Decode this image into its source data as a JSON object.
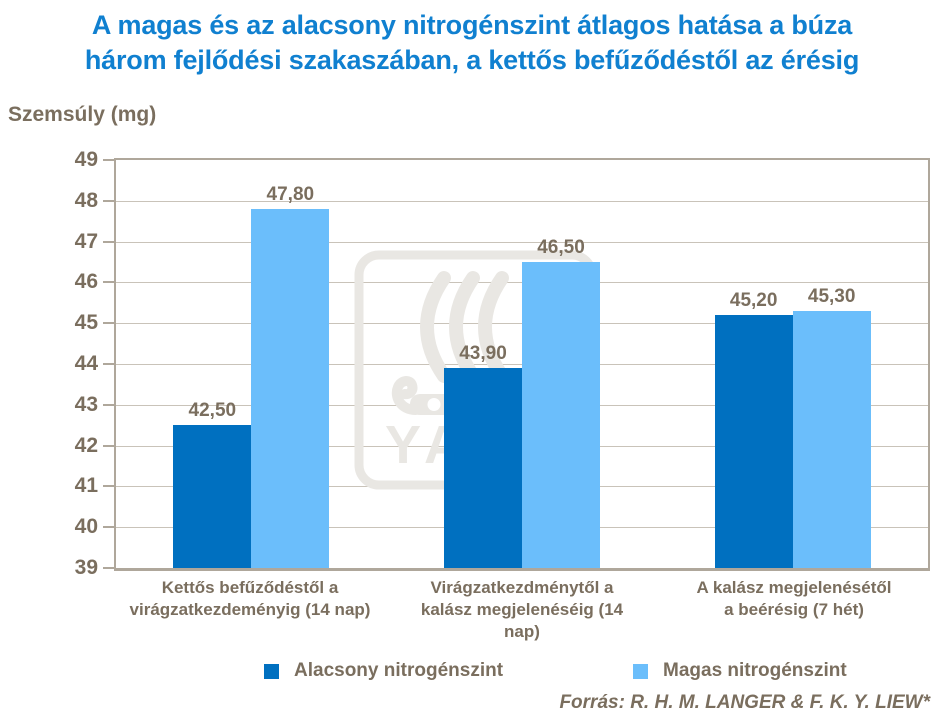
{
  "title": {
    "line1": "A magas és az alacsony nitrogénszint átlagos hatása a búza",
    "line2": "három fejlődési szakaszában, a kettős befűződéstől az érésig"
  },
  "axis": {
    "y_label": "Szemsúly (mg)",
    "y_ticks": [
      49,
      48,
      47,
      46,
      45,
      44,
      43,
      42,
      41,
      40,
      39
    ],
    "y_min": 39,
    "y_max": 49
  },
  "watermark": {
    "text": "YARA"
  },
  "legend": {
    "items": [
      {
        "label": "Alacsony nitrogénszint",
        "color": "#0070C0"
      },
      {
        "label": "Magas nitrogénszint",
        "color": "#6BBEFB"
      }
    ]
  },
  "source": {
    "text": "Forrás: R. H. M. LANGER & F. K. Y. LIEW*"
  },
  "category_lines": [
    [
      "Kettős befűződéstől a",
      "virágzatkezdeményig (14 nap)"
    ],
    [
      "Virágzatkezdménytől a",
      "kalász megjelenéséig (14",
      "nap)"
    ],
    [
      "A kalász megjelenésétől",
      "a beérésig (7 hét)"
    ]
  ],
  "chart_data": {
    "type": "bar",
    "title": "A magas és az alacsony nitrogénszint átlagos hatása a búza három fejlődési szakaszában, a kettős befűződéstől az érésig",
    "categories": [
      "Kettős befűződéstől a virágzatkezdeményig (14 nap)",
      "Virágzatkezdménytől a kalász megjelenéséig (14 nap)",
      "A kalász megjelenésétől a beérésig (7 hét)"
    ],
    "series": [
      {
        "name": "Alacsony nitrogénszint",
        "color": "#0070C0",
        "values": [
          42.5,
          43.9,
          45.2
        ],
        "labels": [
          "42,50",
          "43,90",
          "45,20"
        ]
      },
      {
        "name": "Magas nitrogénszint",
        "color": "#6BBEFB",
        "values": [
          47.8,
          46.5,
          45.3
        ],
        "labels": [
          "47,80",
          "46,50",
          "45,30"
        ]
      }
    ],
    "xlabel": "",
    "ylabel": "Szemsúly (mg)",
    "ylim": [
      39,
      49
    ],
    "grid": true,
    "legend_position": "bottom"
  },
  "colors": {
    "title": "#1080D0",
    "text_brown": "#7A6E5E",
    "gridline": "#C9C3B9",
    "plot_border": "#AFA79B",
    "watermark": "#E9E7E3",
    "bar_dark": "#0070C0",
    "bar_light": "#6BBEFB"
  }
}
